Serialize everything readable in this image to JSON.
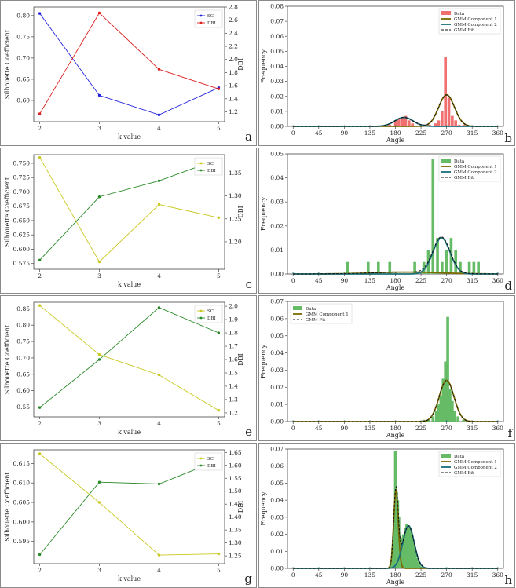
{
  "chart_data": [
    {
      "id": "a",
      "type": "line",
      "panel_letter": "a",
      "xlabel": "k value",
      "ylabel": "Silhouette Coefficient",
      "y2label": "DBI",
      "x": [
        2,
        3,
        4,
        5
      ],
      "xticks": [
        "2",
        "3",
        "4",
        "5"
      ],
      "ylim": [
        0.55,
        0.82
      ],
      "yticks": [
        0.6,
        0.65,
        0.7,
        0.75,
        0.8
      ],
      "y2lim": [
        1.05,
        2.8
      ],
      "y2ticks": [
        1.2,
        1.4,
        1.6,
        1.8,
        2.0,
        2.2,
        2.4,
        2.6,
        2.8
      ],
      "series": [
        {
          "name": "SC",
          "axis": "left",
          "color": "#2222dd",
          "values": [
            0.805,
            0.612,
            0.566,
            0.63
          ]
        },
        {
          "name": "DBI",
          "axis": "right",
          "color": "#dd2222",
          "values": [
            1.17,
            2.71,
            1.85,
            1.55
          ]
        }
      ],
      "legend": "top-right",
      "tick_labels": {
        "y": [
          "0.60",
          "0.65",
          "0.70",
          "0.75",
          "0.80"
        ],
        "y2": [
          "1.2",
          "1.4",
          "1.6",
          "1.8",
          "2.0",
          "2.2",
          "2.4",
          "2.6",
          "2.8"
        ]
      }
    },
    {
      "id": "b",
      "type": "bar",
      "panel_letter": "b",
      "xlabel": "Angle",
      "ylabel": "Frequency",
      "xlim": [
        -10,
        370
      ],
      "xticks": [
        "0",
        "45",
        "90",
        "135",
        "180",
        "225",
        "270",
        "315",
        "360"
      ],
      "ylim": [
        0,
        0.08
      ],
      "yticks": [
        "0.00",
        "0.01",
        "0.02",
        "0.03",
        "0.04",
        "0.05",
        "0.06",
        "0.07",
        "0.08"
      ],
      "bar_color": "#f07070",
      "bars": [
        [
          0,
          0.0005
        ],
        [
          45,
          0.0005
        ],
        [
          90,
          0.0005
        ],
        [
          135,
          0.0005
        ],
        [
          160,
          0.0005
        ],
        [
          170,
          0.001
        ],
        [
          180,
          0.004
        ],
        [
          186,
          0.005
        ],
        [
          192,
          0.006
        ],
        [
          198,
          0.007
        ],
        [
          204,
          0.004
        ],
        [
          210,
          0.002
        ],
        [
          230,
          0.001
        ],
        [
          240,
          0.001
        ],
        [
          250,
          0.002
        ],
        [
          256,
          0.004
        ],
        [
          262,
          0.01
        ],
        [
          268,
          0.046
        ],
        [
          274,
          0.019
        ],
        [
          280,
          0.007
        ],
        [
          286,
          0.004
        ],
        [
          292,
          0.001
        ],
        [
          300,
          0.001
        ],
        [
          310,
          0.0005
        ],
        [
          320,
          0.0005
        ]
      ],
      "components": [
        {
          "name": "GMM Component 1",
          "color": "#7a6a00",
          "mu": 270,
          "sigma": 14,
          "peak": 0.021
        },
        {
          "name": "GMM Component 2",
          "color": "#1a6f7a",
          "mu": 195,
          "sigma": 16,
          "peak": 0.006
        }
      ],
      "fit_name": "GMM Fit",
      "legend_entries": [
        "Data",
        "GMM Component 1",
        "GMM Component 2",
        "GMM Fit"
      ],
      "legend": "top-right"
    },
    {
      "id": "c",
      "type": "line",
      "panel_letter": "c",
      "xlabel": "k value",
      "ylabel": "Silhouette Coefficient",
      "y2label": "DBI",
      "x": [
        2,
        3,
        4,
        5
      ],
      "xticks": [
        "2",
        "3",
        "4",
        "5"
      ],
      "ylim": [
        0.565,
        0.765
      ],
      "yticks": [
        0.575,
        0.6,
        0.625,
        0.65,
        0.675,
        0.7,
        0.725,
        0.75
      ],
      "y2lim": [
        1.14,
        1.39
      ],
      "y2ticks": [
        1.2,
        1.25,
        1.3,
        1.35
      ],
      "series": [
        {
          "name": "SC",
          "axis": "left",
          "color": "#c8c820",
          "values": [
            0.76,
            0.578,
            0.678,
            0.655
          ]
        },
        {
          "name": "DBI",
          "axis": "right",
          "color": "#2a8a2a",
          "values": [
            1.16,
            1.298,
            1.333,
            1.38
          ]
        }
      ],
      "legend": "top-right",
      "tick_labels": {
        "y": [
          "0.575",
          "0.600",
          "0.625",
          "0.650",
          "0.675",
          "0.700",
          "0.725",
          "0.750"
        ],
        "y2": [
          "1.20",
          "1.25",
          "1.30",
          "1.35"
        ]
      }
    },
    {
      "id": "d",
      "type": "bar",
      "panel_letter": "d",
      "xlabel": "Angle",
      "ylabel": "Frequency",
      "xlim": [
        -10,
        370
      ],
      "xticks": [
        "0",
        "45",
        "90",
        "135",
        "180",
        "225",
        "270",
        "315",
        "360"
      ],
      "ylim": [
        0,
        0.05
      ],
      "yticks": [
        "0.00",
        "0.01",
        "0.02",
        "0.03",
        "0.04",
        "0.05"
      ],
      "bar_color": "#66bb66",
      "bars": [
        [
          96,
          0.005
        ],
        [
          132,
          0.005
        ],
        [
          150,
          0.005
        ],
        [
          170,
          0.005
        ],
        [
          214,
          0.005
        ],
        [
          230,
          0.005
        ],
        [
          238,
          0.01
        ],
        [
          246,
          0.048
        ],
        [
          254,
          0.015
        ],
        [
          262,
          0.005
        ],
        [
          270,
          0.01
        ],
        [
          278,
          0.015
        ],
        [
          286,
          0.01
        ],
        [
          294,
          0.005
        ],
        [
          310,
          0.005
        ],
        [
          318,
          0.005
        ],
        [
          326,
          0.005
        ]
      ],
      "components": [
        {
          "name": "GMM Component 1",
          "color": "#7a6a00",
          "mu": 200,
          "sigma": 60,
          "peak": 0.0008
        },
        {
          "name": "GMM Component 2",
          "color": "#1a6f7a",
          "mu": 261,
          "sigma": 15,
          "peak": 0.015
        }
      ],
      "fit_name": "GMM Fit",
      "legend_entries": [
        "Data",
        "GMM Component 1",
        "GMM Component 2",
        "GMM Fit"
      ],
      "legend": "top-right"
    },
    {
      "id": "e",
      "type": "line",
      "panel_letter": "e",
      "xlabel": "k value",
      "ylabel": "Silhouette Coefficient",
      "y2label": "DBI",
      "x": [
        2,
        3,
        4,
        5
      ],
      "xticks": [
        "2",
        "3",
        "4",
        "5"
      ],
      "ylim": [
        0.52,
        0.87
      ],
      "yticks": [
        0.55,
        0.6,
        0.65,
        0.7,
        0.75,
        0.8,
        0.85
      ],
      "y2lim": [
        1.17,
        2.03
      ],
      "y2ticks": [
        1.2,
        1.3,
        1.4,
        1.5,
        1.6,
        1.7,
        1.8,
        1.9,
        2.0
      ],
      "series": [
        {
          "name": "SC",
          "axis": "left",
          "color": "#c8c820",
          "values": [
            0.86,
            0.71,
            0.648,
            0.54
          ]
        },
        {
          "name": "DBI",
          "axis": "right",
          "color": "#2a8a2a",
          "values": [
            1.24,
            1.6,
            1.99,
            1.8
          ]
        }
      ],
      "legend": "top-right",
      "tick_labels": {
        "y": [
          "0.55",
          "0.60",
          "0.65",
          "0.70",
          "0.75",
          "0.80",
          "0.85"
        ],
        "y2": [
          "1.2",
          "1.3",
          "1.4",
          "1.5",
          "1.6",
          "1.7",
          "1.8",
          "1.9",
          "2.0"
        ]
      }
    },
    {
      "id": "f",
      "type": "bar",
      "panel_letter": "f",
      "xlabel": "Angle",
      "ylabel": "Frequency",
      "xlim": [
        -10,
        370
      ],
      "xticks": [
        "0",
        "45",
        "90",
        "135",
        "180",
        "225",
        "270",
        "315",
        "360"
      ],
      "ylim": [
        0,
        0.07
      ],
      "yticks": [
        "0.00",
        "0.01",
        "0.02",
        "0.03",
        "0.04",
        "0.05",
        "0.06",
        "0.07"
      ],
      "bar_color": "#66bb66",
      "bars": [
        [
          230,
          0.001
        ],
        [
          238,
          0.001
        ],
        [
          246,
          0.003
        ],
        [
          252,
          0.006
        ],
        [
          256,
          0.01
        ],
        [
          260,
          0.015
        ],
        [
          264,
          0.025
        ],
        [
          268,
          0.035
        ],
        [
          272,
          0.061
        ],
        [
          276,
          0.019
        ],
        [
          280,
          0.012
        ],
        [
          284,
          0.006
        ],
        [
          290,
          0.003
        ],
        [
          300,
          0.001
        ]
      ],
      "components": [
        {
          "name": "GMM Component 1",
          "color": "#7a6a00",
          "mu": 270,
          "sigma": 13,
          "peak": 0.024
        }
      ],
      "fit_name": "GMM Fit",
      "legend_entries": [
        "Data",
        "GMM Component 1",
        "GMM Fit"
      ],
      "legend": "top-left"
    },
    {
      "id": "g",
      "type": "line",
      "panel_letter": "g",
      "xlabel": "k value",
      "ylabel": "Silhouette Coefficient",
      "y2label": "DBI",
      "x": [
        2,
        3,
        4,
        5
      ],
      "xticks": [
        "2",
        "3",
        "4",
        "5"
      ],
      "ylim": [
        0.5893,
        0.6185
      ],
      "yticks": [
        0.595,
        0.6,
        0.605,
        0.61,
        0.615
      ],
      "y2lim": [
        1.22,
        1.66
      ],
      "y2ticks": [
        1.25,
        1.3,
        1.35,
        1.4,
        1.45,
        1.5,
        1.55,
        1.6,
        1.65
      ],
      "series": [
        {
          "name": "SC",
          "axis": "left",
          "color": "#c8c820",
          "values": [
            0.6175,
            0.605,
            0.5915,
            0.5918
          ]
        },
        {
          "name": "DBI",
          "axis": "right",
          "color": "#2a8a2a",
          "values": [
            1.255,
            1.535,
            1.528,
            1.62
          ]
        }
      ],
      "legend": "top-right",
      "tick_labels": {
        "y": [
          "0.595",
          "0.600",
          "0.605",
          "0.610",
          "0.615"
        ],
        "y2": [
          "1.25",
          "1.30",
          "1.35",
          "1.40",
          "1.45",
          "1.50",
          "1.55",
          "1.60",
          "1.65"
        ]
      }
    },
    {
      "id": "h",
      "type": "bar",
      "panel_letter": "h",
      "xlabel": "Angle",
      "ylabel": "Frequency",
      "xlim": [
        -10,
        370
      ],
      "xticks": [
        "0",
        "45",
        "90",
        "135",
        "180",
        "225",
        "270",
        "315",
        "360"
      ],
      "ylim": [
        0,
        0.07
      ],
      "yticks": [
        "0.00",
        "0.01",
        "0.02",
        "0.03",
        "0.04",
        "0.05",
        "0.06",
        "0.07"
      ],
      "bar_color": "#66bb66",
      "bars": [
        [
          172,
          0.003
        ],
        [
          175,
          0.012
        ],
        [
          178,
          0.03
        ],
        [
          180,
          0.069
        ],
        [
          182,
          0.045
        ],
        [
          184,
          0.04
        ],
        [
          186,
          0.03
        ],
        [
          188,
          0.02
        ],
        [
          191,
          0.018
        ],
        [
          194,
          0.02
        ],
        [
          197,
          0.024
        ],
        [
          200,
          0.026
        ],
        [
          203,
          0.025
        ],
        [
          206,
          0.024
        ],
        [
          209,
          0.02
        ],
        [
          212,
          0.015
        ],
        [
          215,
          0.01
        ],
        [
          218,
          0.006
        ],
        [
          222,
          0.003
        ],
        [
          226,
          0.001
        ]
      ],
      "components": [
        {
          "name": "GMM Component 1",
          "color": "#7a6a00",
          "mu": 181,
          "sigma": 4,
          "peak": 0.046
        },
        {
          "name": "GMM Component 2",
          "color": "#1a6f7a",
          "mu": 203,
          "sigma": 10,
          "peak": 0.025
        }
      ],
      "fit_name": "GMM Fit",
      "legend_entries": [
        "Data",
        "GMM Component 1",
        "GMM Component 2",
        "GMM Fit"
      ],
      "legend": "top-right"
    }
  ]
}
